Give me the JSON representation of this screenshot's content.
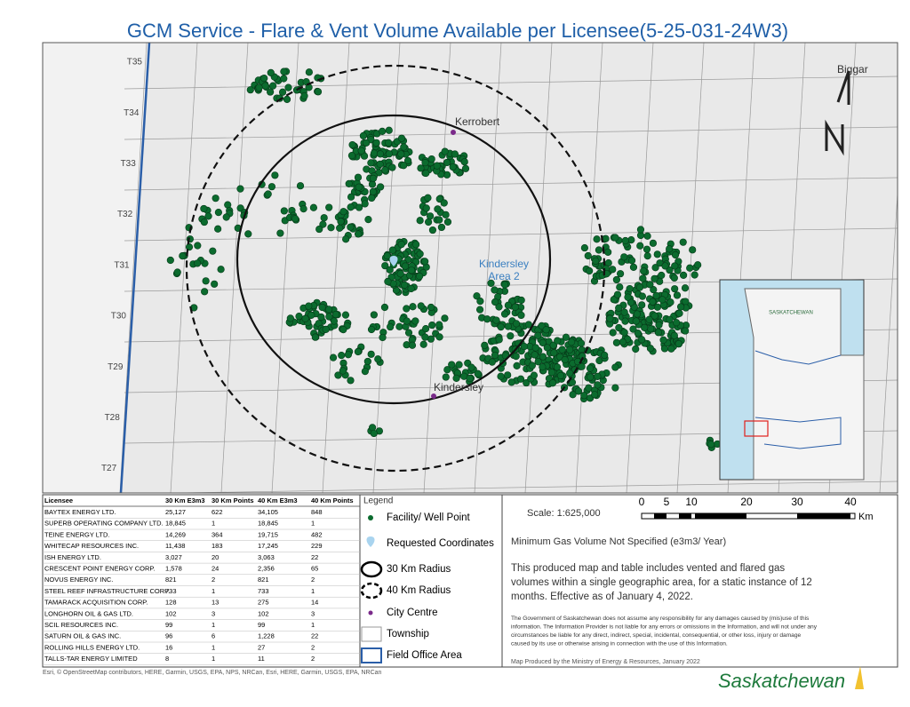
{
  "title": "GCM Service - Flare & Vent Volume Available per Licensee(5-25-031-24W3)",
  "map": {
    "townships": [
      "T35",
      "T34",
      "T33",
      "T32",
      "T31",
      "T30",
      "T29",
      "T28",
      "T27"
    ],
    "places": {
      "kerrobert": "Kerrobert",
      "kindersley": "Kindersley",
      "biggar": "Biggar"
    },
    "area_label": [
      "Kindersley",
      "Area 2"
    ],
    "inset_label": "SASKATCHEWAN"
  },
  "table": {
    "headers": [
      "Licensee",
      "30 Km E3m3",
      "30 Km Points",
      "40 Km E3m3",
      "40 Km Points"
    ],
    "rows": [
      [
        "BAYTEX ENERGY LTD.",
        "25,127",
        "622",
        "34,105",
        "848"
      ],
      [
        "SUPERB OPERATING COMPANY LTD.",
        "18,845",
        "1",
        "18,845",
        "1"
      ],
      [
        "TEINE ENERGY LTD.",
        "14,269",
        "364",
        "19,715",
        "482"
      ],
      [
        "WHITECAP RESOURCES INC.",
        "11,438",
        "183",
        "17,245",
        "229"
      ],
      [
        "ISH ENERGY LTD.",
        "3,027",
        "20",
        "3,063",
        "22"
      ],
      [
        "CRESCENT POINT ENERGY CORP.",
        "1,578",
        "24",
        "2,356",
        "65"
      ],
      [
        "NOVUS ENERGY INC.",
        "821",
        "2",
        "821",
        "2"
      ],
      [
        "STEEL REEF INFRASTRUCTURE CORP.",
        "733",
        "1",
        "733",
        "1"
      ],
      [
        "TAMARACK ACQUISITION CORP.",
        "128",
        "13",
        "275",
        "14"
      ],
      [
        "LONGHORN OIL & GAS LTD.",
        "102",
        "3",
        "102",
        "3"
      ],
      [
        "SCIL RESOURCES INC.",
        "99",
        "1",
        "99",
        "1"
      ],
      [
        "SATURN OIL & GAS INC.",
        "96",
        "6",
        "1,228",
        "22"
      ],
      [
        "ROLLING HILLS ENERGY LTD.",
        "16",
        "1",
        "27",
        "2"
      ],
      [
        "TALLS-TAR ENERGY LIMITED",
        "8",
        "1",
        "11",
        "2"
      ]
    ]
  },
  "legend": {
    "title": "Legend",
    "items": [
      "Facility/ Well Point",
      "Requested Coordinates",
      "30 Km Radius",
      "40 Km Radius",
      "City Centre",
      "Township",
      "Field Office Area"
    ]
  },
  "scale": {
    "text": "Scale: 1:625,000",
    "ticks": [
      "0",
      "5",
      "10",
      "20",
      "30",
      "40"
    ],
    "unit": "Km"
  },
  "notes": {
    "min_volume": "Minimum Gas Volume Not Specified (e3m3/ Year)",
    "description": [
      "This produced map and table includes vented and flared gas",
      "volumes within a single geographic area, for a static instance of 12",
      "months. Effective as of January 4, 2022."
    ],
    "disclaimer": [
      "The Government of Saskatchewan does not assume any responsibility for any damages caused by (mis)use of this",
      "information. The Information Provider is not liable for any errors or omissions in the Information, and will not under any",
      "circumstances be liable for any direct, indirect, special, incidental, consequential, or other loss, injury or damage",
      "caused by its use or otherwise arising in connection with the use of this Information."
    ],
    "produced_by": "Map Produced by the Ministry of Energy & Resources, January 2022"
  },
  "credits": "Esri, © OpenStreetMap contributors, HERE, Garmin, USGS, EPA, NPS, NRCan, Esri, HERE, Garmin, USGS, EPA, NRCan",
  "logo": "Saskatchewan"
}
